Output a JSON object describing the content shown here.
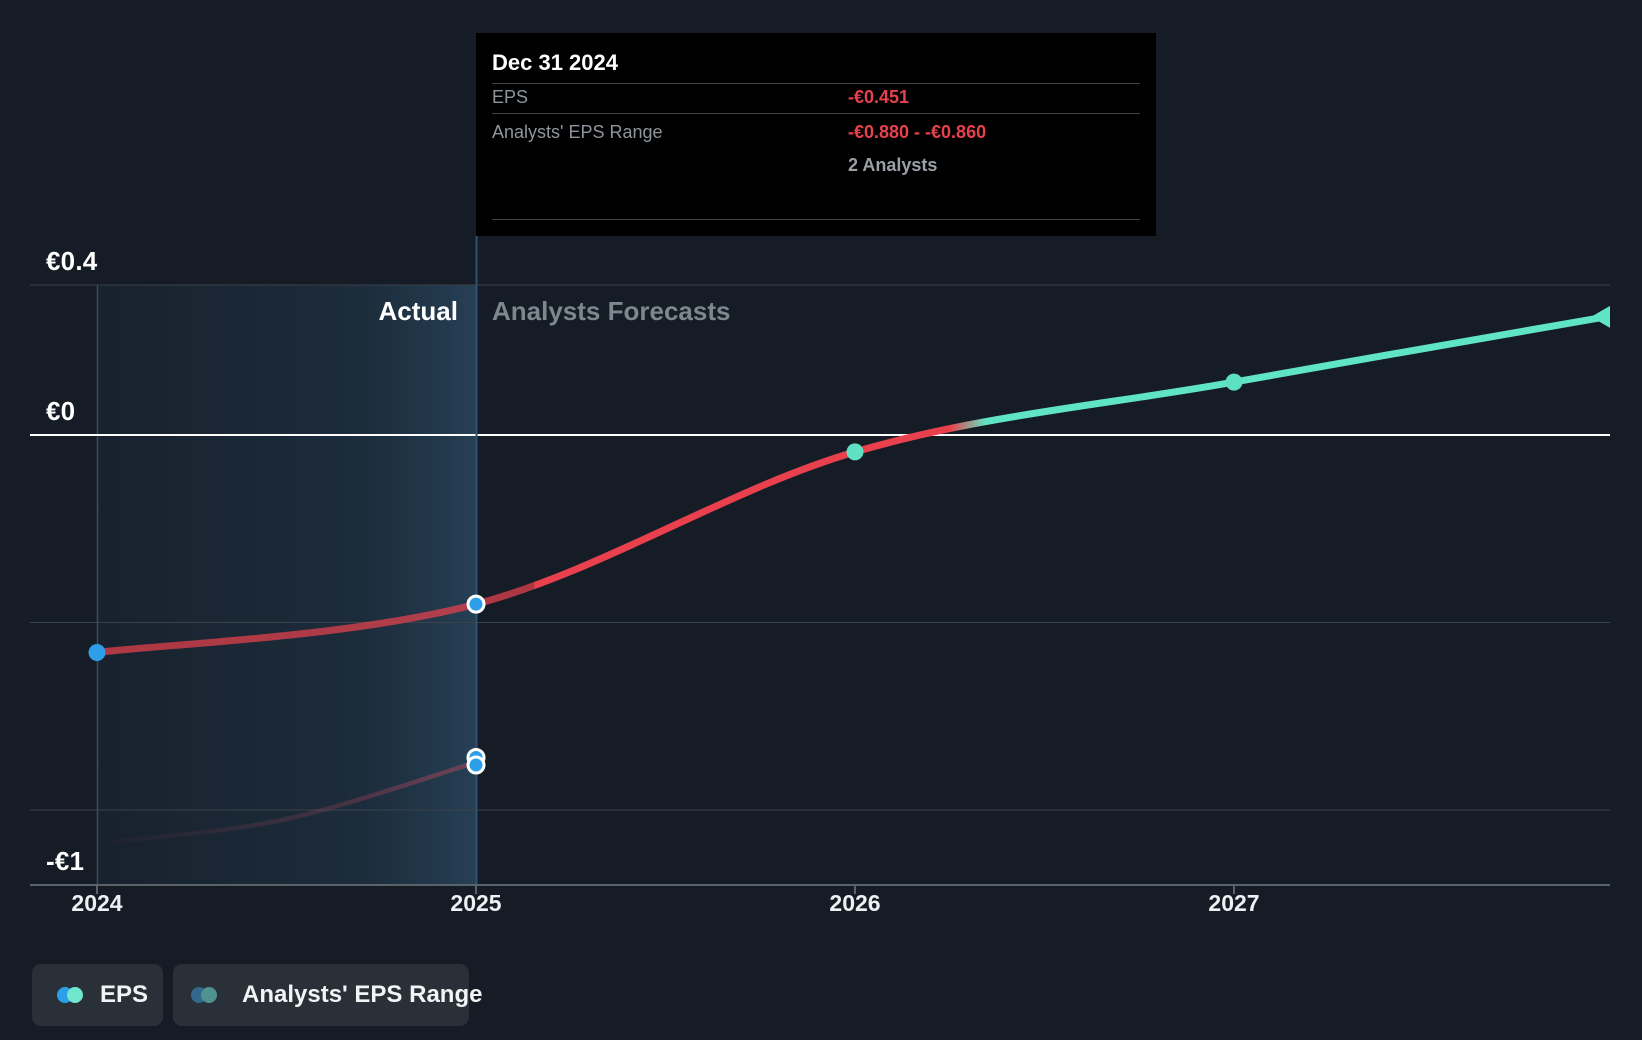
{
  "colors": {
    "background": "#161c25",
    "eps_red": "#e8414d",
    "eps_teal": "#5fe4c4",
    "dot_blue": "#2d9fe8",
    "dot_teal": "#5ee0c2",
    "range_line": "#a34458",
    "grid": "#3a424b",
    "zero_line": "#ffffff",
    "axis": "#5a6269",
    "divider": "#2f5270",
    "band_tint": "#3a7aa8",
    "band_tint_edge": "#4b93c4",
    "tooltip_bg": "#000000",
    "legend_dot_blue": "#2d9fe8",
    "legend_dot_teal": "#6fe6cd",
    "legend_dot_blue_dim": "#33688f",
    "legend_dot_teal_dim": "#4f9290"
  },
  "tooltip": {
    "title": "Dec 31 2024",
    "rows": [
      {
        "label": "EPS",
        "value": "-€0.451"
      },
      {
        "label": "Analysts' EPS Range",
        "value": "-€0.880 - -€0.860"
      }
    ],
    "analysts_note": "2 Analysts"
  },
  "annotations": {
    "actual_label": "Actual",
    "forecast_label": "Analysts Forecasts"
  },
  "legend": {
    "items": [
      {
        "label": "EPS"
      },
      {
        "label": "Analysts' EPS Range"
      }
    ]
  },
  "chart_data": {
    "type": "line",
    "currency": "EUR",
    "divider_year": 2025,
    "x_ticks": [
      {
        "label": "2024",
        "year": 2024
      },
      {
        "label": "2025",
        "year": 2025
      },
      {
        "label": "2026",
        "year": 2026
      },
      {
        "label": "2027",
        "year": 2027
      }
    ],
    "y_gridlines": [
      {
        "value": 0.4,
        "label": "€0.4"
      },
      {
        "value": 0,
        "label": "€0",
        "zero_line": true
      },
      {
        "value": -0.5
      },
      {
        "value": -1,
        "label": "-€1",
        "label_at_axis": true
      }
    ],
    "y_axis_bottom_value": -1.2,
    "series": [
      {
        "name": "EPS",
        "zero_cross_year": 2026.24,
        "points": [
          {
            "year": 2024,
            "value": -0.58,
            "dot": "blue",
            "segment": "actual"
          },
          {
            "year": 2025,
            "value": -0.451,
            "dot": "blue-ring",
            "segment": "divider"
          },
          {
            "year": 2026,
            "value": -0.045,
            "dot": "teal"
          },
          {
            "year": 2027,
            "value": 0.141,
            "dot": "teal"
          },
          {
            "year": 2027.98,
            "value": 0.315,
            "dot": "arrow"
          }
        ]
      },
      {
        "name": "Analysts' EPS Range",
        "points": [
          {
            "year": 2024.04,
            "value": -1.085
          },
          {
            "year": 2024.5,
            "value": -1.024
          },
          {
            "year": 2025,
            "value": -0.873
          }
        ],
        "range_dots": [
          {
            "year": 2025,
            "value": -0.86
          },
          {
            "year": 2025,
            "value": -0.88
          }
        ]
      }
    ]
  }
}
